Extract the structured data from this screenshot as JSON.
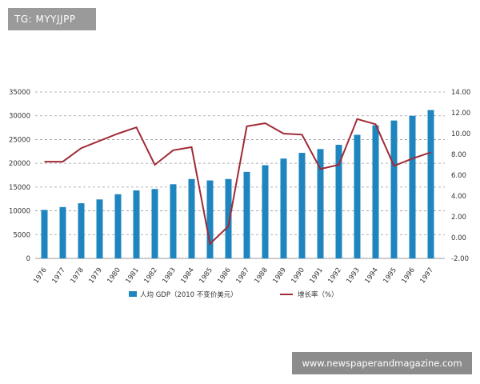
{
  "watermarks": {
    "top_left": "TG: MYYJJPP",
    "bottom_right": "www.newspaperandmagazine.com"
  },
  "colors": {
    "bar": "#1f85bf",
    "line": "#a02a35",
    "grid": "#9a9a9a"
  },
  "chart_data": {
    "type": "bar",
    "title": "",
    "categories": [
      "1976",
      "1977",
      "1978",
      "1979",
      "1980",
      "1981",
      "1982",
      "1983",
      "1984",
      "1985",
      "1986",
      "1987",
      "1988",
      "1989",
      "1990",
      "1991",
      "1992",
      "1993",
      "1994",
      "1995",
      "1996",
      "1997"
    ],
    "series": [
      {
        "name": "人均 GDP（2010 不变价美元）",
        "type": "bar",
        "axis": "left",
        "values": [
          10200,
          10800,
          11600,
          12400,
          13500,
          14300,
          14600,
          15600,
          16700,
          16400,
          16700,
          18200,
          19600,
          21000,
          22200,
          23000,
          23900,
          26000,
          28000,
          29000,
          30000,
          31200
        ]
      },
      {
        "name": "增长率（%）",
        "type": "line",
        "axis": "right",
        "values": [
          7.3,
          7.3,
          8.6,
          9.3,
          10.0,
          10.6,
          7.0,
          8.4,
          8.7,
          -0.6,
          1.1,
          10.7,
          11.0,
          10.0,
          9.9,
          6.6,
          7.0,
          11.4,
          10.9,
          6.9,
          7.6,
          8.2
        ]
      }
    ],
    "y_left": {
      "ylim": [
        0,
        35000
      ],
      "ticks": [
        "0",
        "5000",
        "10000",
        "15000",
        "20000",
        "25000",
        "30000",
        "35000"
      ]
    },
    "y_right": {
      "ylim": [
        -2,
        14
      ],
      "ticks": [
        "-2.00",
        "0.00",
        "2.00",
        "4.00",
        "6.00",
        "8.00",
        "10.00",
        "12.00",
        "14.00"
      ]
    },
    "grid": true,
    "legend_position": "bottom"
  }
}
